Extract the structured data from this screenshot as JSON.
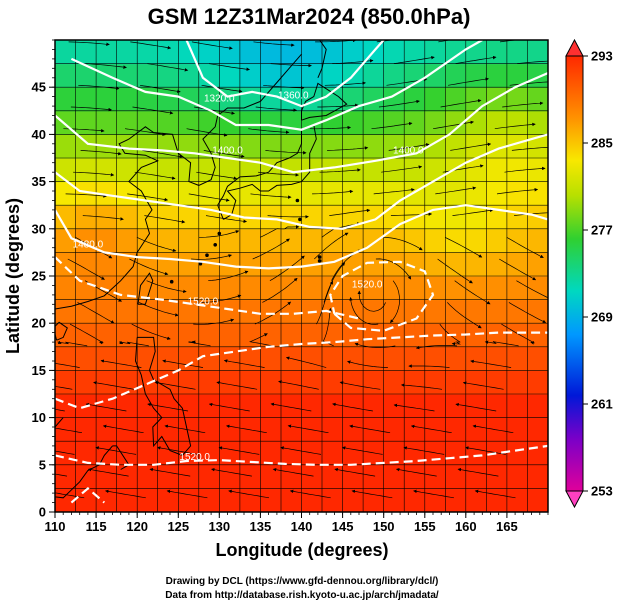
{
  "title": "GSM 12Z31Mar2024 (850.0hPa)",
  "xlabel": "Longitude (degrees)",
  "ylabel": "Latitude  (degrees)",
  "credits": [
    "Drawing by DCL (https://www.gfd-dennou.org/library/dcl/)",
    "Data from http://database.rish.kyoto-u.ac.jp/arch/jmadata/"
  ],
  "chart_data": {
    "type": "heatmap",
    "description_fields": "temperature shading (K) with geopotential height contours (m) and wind streamlines",
    "x_ticks": [
      110,
      115,
      120,
      125,
      130,
      135,
      140,
      145,
      150,
      155,
      160,
      165
    ],
    "y_ticks": [
      0,
      5,
      10,
      15,
      20,
      25,
      30,
      35,
      40,
      45
    ],
    "xlim": [
      110,
      170
    ],
    "ylim": [
      0,
      50
    ],
    "colorbar": {
      "ticks": [
        253,
        261,
        269,
        277,
        285,
        293
      ],
      "range": [
        253,
        293
      ],
      "extend": "both"
    },
    "contour_labels": [
      {
        "text": "1320.0",
        "lon": 130,
        "lat": 43.5
      },
      {
        "text": "1360.0",
        "lon": 139,
        "lat": 43.8
      },
      {
        "text": "1400.0",
        "lon": 131,
        "lat": 38
      },
      {
        "text": "1400.0",
        "lon": 153,
        "lat": 38
      },
      {
        "text": "1480.0",
        "lon": 114,
        "lat": 28
      },
      {
        "text": "1520.0",
        "lon": 128,
        "lat": 22
      },
      {
        "text": "1520.0",
        "lon": 148,
        "lat": 23.8
      },
      {
        "text": "1520.0",
        "lon": 127,
        "lat": 5.5
      }
    ]
  }
}
